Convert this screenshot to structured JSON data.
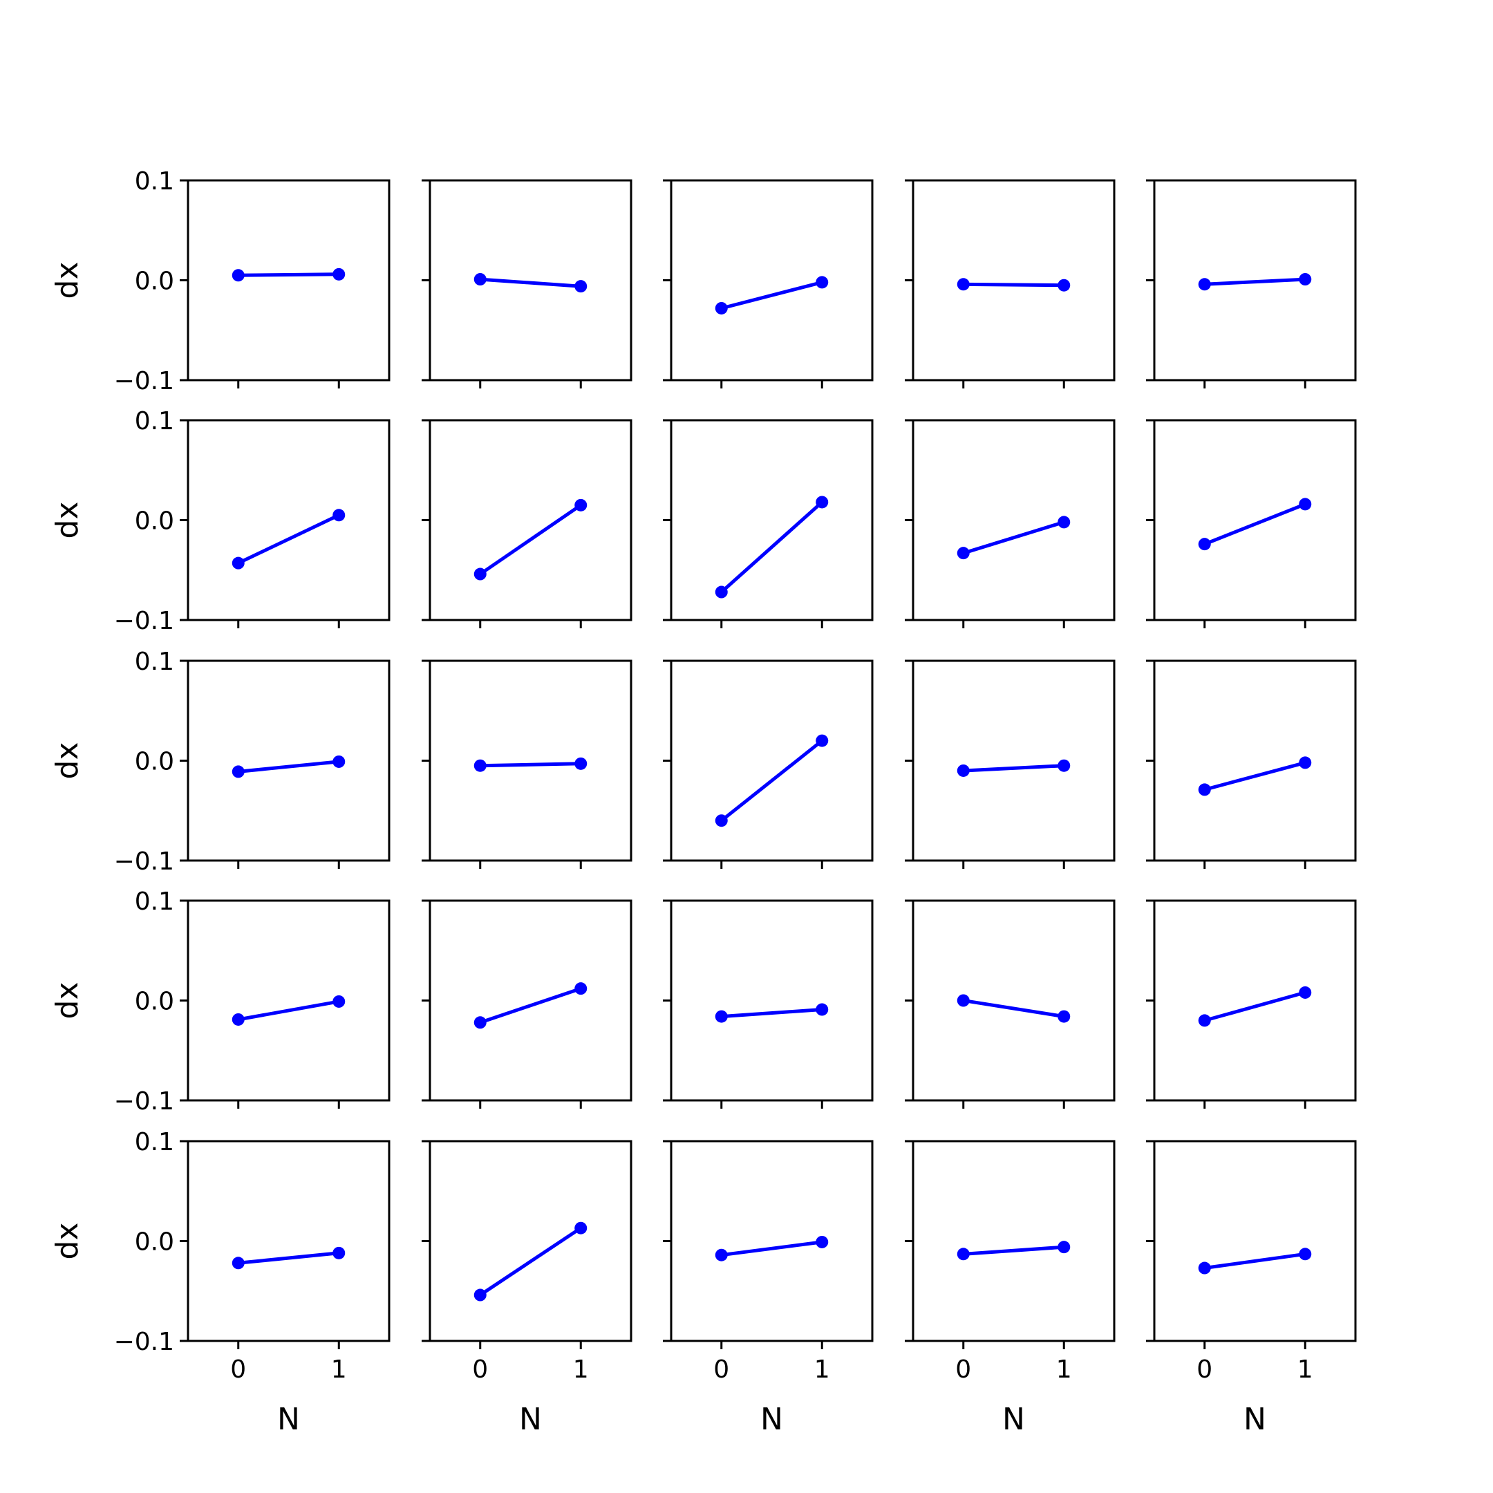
{
  "chart_data": {
    "type": "line",
    "layout": {
      "rows": 5,
      "cols": 5
    },
    "xlabel": "N",
    "ylabel": "dx",
    "xlim": [
      -0.5,
      1.5
    ],
    "ylim": [
      -0.1,
      0.1
    ],
    "xticks": [
      0,
      1
    ],
    "xtick_labels": [
      "0",
      "1"
    ],
    "yticks": [
      0.1,
      0.0,
      -0.1
    ],
    "ytick_labels": [
      "0.1",
      "0.0",
      "−0.1"
    ],
    "marker": "circle",
    "line_color": "#0000ff",
    "grid": false,
    "panels": [
      {
        "x": [
          0,
          1
        ],
        "y": [
          0.005,
          0.006
        ]
      },
      {
        "x": [
          0,
          1
        ],
        "y": [
          0.001,
          -0.006
        ]
      },
      {
        "x": [
          0,
          1
        ],
        "y": [
          -0.028,
          -0.002
        ]
      },
      {
        "x": [
          0,
          1
        ],
        "y": [
          -0.004,
          -0.005
        ]
      },
      {
        "x": [
          0,
          1
        ],
        "y": [
          -0.004,
          0.001
        ]
      },
      {
        "x": [
          0,
          1
        ],
        "y": [
          -0.043,
          0.005
        ]
      },
      {
        "x": [
          0,
          1
        ],
        "y": [
          -0.054,
          0.015
        ]
      },
      {
        "x": [
          0,
          1
        ],
        "y": [
          -0.072,
          0.018
        ]
      },
      {
        "x": [
          0,
          1
        ],
        "y": [
          -0.033,
          -0.002
        ]
      },
      {
        "x": [
          0,
          1
        ],
        "y": [
          -0.024,
          0.016
        ]
      },
      {
        "x": [
          0,
          1
        ],
        "y": [
          -0.011,
          -0.001
        ]
      },
      {
        "x": [
          0,
          1
        ],
        "y": [
          -0.005,
          -0.003
        ]
      },
      {
        "x": [
          0,
          1
        ],
        "y": [
          -0.06,
          0.02
        ]
      },
      {
        "x": [
          0,
          1
        ],
        "y": [
          -0.01,
          -0.005
        ]
      },
      {
        "x": [
          0,
          1
        ],
        "y": [
          -0.029,
          -0.002
        ]
      },
      {
        "x": [
          0,
          1
        ],
        "y": [
          -0.019,
          -0.001
        ]
      },
      {
        "x": [
          0,
          1
        ],
        "y": [
          -0.022,
          0.012
        ]
      },
      {
        "x": [
          0,
          1
        ],
        "y": [
          -0.016,
          -0.009
        ]
      },
      {
        "x": [
          0,
          1
        ],
        "y": [
          0.0,
          -0.016
        ]
      },
      {
        "x": [
          0,
          1
        ],
        "y": [
          -0.02,
          0.008
        ]
      },
      {
        "x": [
          0,
          1
        ],
        "y": [
          -0.022,
          -0.012
        ]
      },
      {
        "x": [
          0,
          1
        ],
        "y": [
          -0.054,
          0.013
        ]
      },
      {
        "x": [
          0,
          1
        ],
        "y": [
          -0.014,
          -0.001
        ]
      },
      {
        "x": [
          0,
          1
        ],
        "y": [
          -0.013,
          -0.006
        ]
      },
      {
        "x": [
          0,
          1
        ],
        "y": [
          -0.027,
          -0.013
        ]
      }
    ]
  }
}
